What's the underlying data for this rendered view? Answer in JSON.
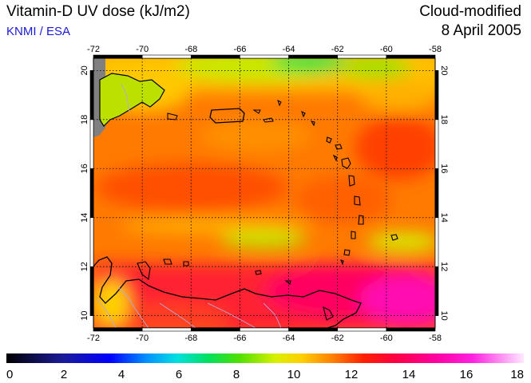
{
  "header": {
    "title": "Vitamin-D UV dose (kJ/m2)",
    "credit": "KNMI / ESA",
    "subtitle": "Cloud-modified",
    "date": "8 April 2005"
  },
  "map": {
    "lon_ticks": [
      "-72",
      "-70",
      "-68",
      "-66",
      "-64",
      "-62",
      "-60",
      "-58"
    ],
    "lat_ticks": [
      "10",
      "12",
      "14",
      "16",
      "18",
      "20"
    ],
    "lon_range": [
      -72,
      -58
    ],
    "lat_range": [
      9.5,
      20.5
    ],
    "grid": true,
    "colors": {
      "land_outline": "#000000",
      "border_lines": "#b0a8c8",
      "no_data": "#808080"
    }
  },
  "colorbar": {
    "min": 0,
    "max": 18,
    "labels": [
      "0",
      "2",
      "4",
      "6",
      "8",
      "10",
      "12",
      "14",
      "16",
      "18"
    ]
  }
}
